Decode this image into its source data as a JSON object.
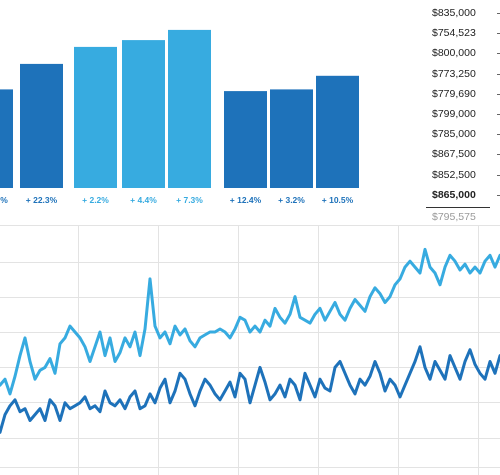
{
  "colors": {
    "dark_blue": "#1e72ba",
    "light_blue": "#37abe0",
    "grid": "#e3e3e3"
  },
  "bar_chart": {
    "bars": [
      {
        "value": 0.58,
        "color": "dark"
      },
      {
        "value": 0.73,
        "color": "dark"
      },
      {
        "value": 0.83,
        "color": "light"
      },
      {
        "value": 0.87,
        "color": "light"
      },
      {
        "value": 0.93,
        "color": "light"
      },
      {
        "value": 0.57,
        "color": "dark"
      },
      {
        "value": 0.58,
        "color": "dark"
      },
      {
        "value": 0.66,
        "color": "dark"
      }
    ],
    "labels": [
      {
        "text": "%",
        "color": "dark"
      },
      {
        "text": "+ 22.3%",
        "color": "dark"
      },
      {
        "text": "+ 2.2%",
        "color": "light"
      },
      {
        "text": "+ 4.4%",
        "color": "light"
      },
      {
        "text": "+ 7.3%",
        "color": "light"
      },
      {
        "text": "+ 12.4%",
        "color": "dark"
      },
      {
        "text": "+ 3.2%",
        "color": "dark"
      },
      {
        "text": "+ 10.5%",
        "color": "dark"
      }
    ]
  },
  "price_list": {
    "items": [
      "$835,000",
      "$754,523",
      "$800,000",
      "$773,250",
      "$779,690",
      "$799,000",
      "$785,000",
      "$867,500",
      "$852,500",
      "$865,000"
    ],
    "bold_index": 9,
    "summary": "$795,575"
  },
  "chart_data": {
    "type": "line",
    "grid": true,
    "series": [
      {
        "color": "light",
        "values": [
          22,
          24,
          19,
          25,
          32,
          38,
          30,
          24,
          27,
          28,
          31,
          26,
          36,
          38,
          42,
          40,
          38,
          35,
          30,
          35,
          40,
          32,
          38,
          30,
          33,
          38,
          35,
          40,
          32,
          41,
          58,
          42,
          38,
          40,
          36,
          42,
          39,
          41,
          37,
          35,
          38,
          39,
          40,
          40,
          41,
          40,
          38,
          41,
          45,
          44,
          40,
          42,
          40,
          44,
          42,
          48,
          45,
          43,
          46,
          52,
          45,
          44,
          43,
          46,
          48,
          44,
          47,
          50,
          46,
          44,
          48,
          51,
          49,
          47,
          52,
          55,
          53,
          50,
          52,
          56,
          58,
          62,
          64,
          62,
          60,
          68,
          62,
          60,
          56,
          62,
          66,
          64,
          61,
          63,
          60,
          62,
          60,
          64,
          66,
          62,
          66
        ]
      },
      {
        "color": "dark",
        "values": [
          6,
          12,
          15,
          17,
          13,
          14,
          10,
          12,
          14,
          10,
          17,
          15,
          10,
          16,
          14,
          15,
          16,
          18,
          14,
          15,
          13,
          20,
          16,
          15,
          17,
          14,
          18,
          20,
          14,
          15,
          19,
          16,
          21,
          24,
          16,
          20,
          26,
          24,
          19,
          15,
          20,
          24,
          22,
          19,
          17,
          20,
          23,
          18,
          26,
          24,
          16,
          22,
          28,
          23,
          17,
          19,
          22,
          18,
          24,
          22,
          17,
          26,
          22,
          18,
          24,
          21,
          20,
          28,
          30,
          26,
          22,
          19,
          24,
          22,
          25,
          30,
          26,
          20,
          24,
          22,
          18,
          22,
          26,
          30,
          35,
          28,
          24,
          30,
          27,
          24,
          32,
          28,
          24,
          30,
          34,
          29,
          26,
          24,
          30,
          26,
          32
        ]
      }
    ]
  }
}
